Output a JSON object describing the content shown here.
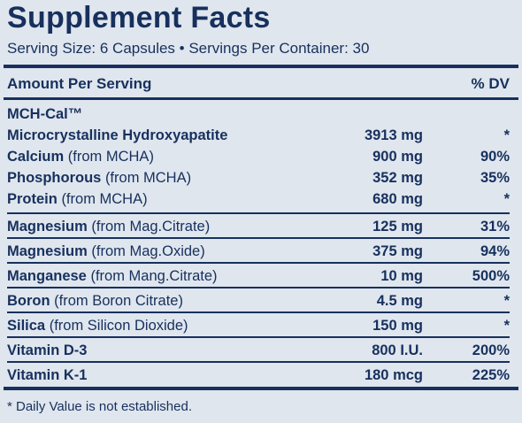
{
  "header": {
    "title": "Supplement Facts",
    "serving": "Serving Size: 6 Capsules • Servings Per Container: 30"
  },
  "table": {
    "columns": [
      "Amount Per Serving",
      "% DV"
    ],
    "group": "MCH-Cal™",
    "rows": [
      {
        "name": "Microcrystalline Hydroxyapatite",
        "amount": "3913 mg",
        "dv": "*"
      },
      {
        "name": "Calcium",
        "source": "(from MCHA)",
        "amount": "900 mg",
        "dv": "90%"
      },
      {
        "name": "Phosphorous",
        "source": "(from MCHA)",
        "amount": "352 mg",
        "dv": "35%"
      },
      {
        "name": "Protein",
        "source": "(from MCHA)",
        "amount": "680 mg",
        "dv": "*"
      },
      {
        "name": "Magnesium",
        "source": "(from Mag.Citrate)",
        "amount": "125 mg",
        "dv": "31%"
      },
      {
        "name": "Magnesium",
        "source": "(from Mag.Oxide)",
        "amount": "375 mg",
        "dv": "94%"
      },
      {
        "name": "Manganese",
        "source": "(from Mang.Citrate)",
        "amount": "10 mg",
        "dv": "500%"
      },
      {
        "name": "Boron",
        "source": "(from Boron Citrate)",
        "amount": "4.5 mg",
        "dv": "*"
      },
      {
        "name": "Silica",
        "source": "(from Silicon Dioxide)",
        "amount": "150 mg",
        "dv": "*"
      },
      {
        "name": "Vitamin D-3",
        "amount": "800 I.U.",
        "dv": "200%"
      },
      {
        "name": "Vitamin K-1",
        "amount": "180 mcg",
        "dv": "225%"
      }
    ]
  },
  "footnote": "* Daily Value is not established."
}
